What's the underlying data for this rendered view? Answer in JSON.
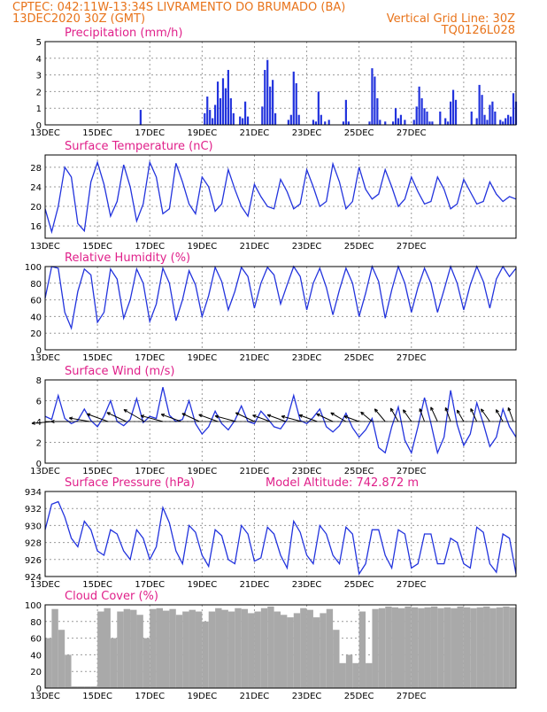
{
  "header": {
    "line1": "CPTEC:   042:11W-13:34S  LIVRAMENTO DO BRUMADO (BA)",
    "line2_left": "13DEC2020 30Z (GMT)",
    "line2_right": "Vertical Grid Line: 30Z",
    "line3_right": "TQ0126L028"
  },
  "colors": {
    "header": "#e8731a",
    "title": "#e0208a",
    "series": "#2233dd",
    "cloud": "#a9a9a9"
  },
  "date_labels": [
    "13DEC",
    "15DEC",
    "17DEC",
    "19DEC",
    "21DEC",
    "23DEC",
    "25DEC",
    "27DEC"
  ],
  "chart_data": [
    {
      "type": "bar",
      "title": "Precipitation (mm/h)",
      "ylim": [
        0,
        5
      ],
      "yticks": [
        "0",
        "1",
        "2",
        "3",
        "4",
        "5"
      ],
      "x_days": [
        3.65,
        6.1,
        6.2,
        6.3,
        6.4,
        6.5,
        6.6,
        6.7,
        6.8,
        6.9,
        7.0,
        7.1,
        7.2,
        7.45,
        7.55,
        7.65,
        7.75,
        8.3,
        8.4,
        8.5,
        8.6,
        8.7,
        8.8,
        9.3,
        9.4,
        9.5,
        9.6,
        9.7,
        10.25,
        10.35,
        10.45,
        10.55,
        10.7,
        10.85,
        11.4,
        11.5,
        11.6,
        12.4,
        12.5,
        12.6,
        12.7,
        12.8,
        13.0,
        13.3,
        13.4,
        13.5,
        13.6,
        13.75,
        14.1,
        14.2,
        14.3,
        14.4,
        14.5,
        14.6,
        14.7,
        14.8,
        15.1,
        15.3,
        15.4,
        15.5,
        15.6,
        15.7,
        16.3,
        16.5,
        16.6,
        16.7,
        16.8,
        16.9,
        17.0,
        17.1,
        17.2,
        17.4,
        17.5,
        17.6,
        17.7,
        17.8,
        17.9,
        18.0
      ],
      "values": [
        0.9,
        0.7,
        1.7,
        0.9,
        0.4,
        1.2,
        2.6,
        1.6,
        2.8,
        2.2,
        3.3,
        1.6,
        0.7,
        0.5,
        0.4,
        1.4,
        0.5,
        1.1,
        3.3,
        3.9,
        2.3,
        2.7,
        0.7,
        0.3,
        0.6,
        3.2,
        2.5,
        0.6,
        0.3,
        0.2,
        2.0,
        0.6,
        0.2,
        0.3,
        0.2,
        1.5,
        0.2,
        0.2,
        3.4,
        2.9,
        1.6,
        0.3,
        0.2,
        0.2,
        1.0,
        0.4,
        0.6,
        0.3,
        0.3,
        1.1,
        2.3,
        1.6,
        1.0,
        0.8,
        0.2,
        0.2,
        0.8,
        0.4,
        0.2,
        1.4,
        2.1,
        1.5,
        0.8,
        0.4,
        2.4,
        1.8,
        0.6,
        0.3,
        1.2,
        1.4,
        0.8,
        0.3,
        0.2,
        0.4,
        0.6,
        0.5,
        1.9,
        1.4
      ]
    },
    {
      "type": "line",
      "title": "Surface Temperature (nC)",
      "ylim": [
        13.5,
        30.5
      ],
      "yticks": [
        "16",
        "20",
        "24",
        "28"
      ],
      "x_days": [
        0,
        0.25,
        0.5,
        0.75,
        1,
        1.25,
        1.5,
        1.75,
        2,
        2.25,
        2.5,
        2.75,
        3,
        3.25,
        3.5,
        3.75,
        4,
        4.25,
        4.5,
        4.75,
        5,
        5.25,
        5.5,
        5.75,
        6,
        6.25,
        6.5,
        6.75,
        7,
        7.25,
        7.5,
        7.75,
        8,
        8.25,
        8.5,
        8.75,
        9,
        9.25,
        9.5,
        9.75,
        10,
        10.25,
        10.5,
        10.75,
        11,
        11.25,
        11.5,
        11.75,
        12,
        12.25,
        12.5,
        12.75,
        13,
        13.25,
        13.5,
        13.75,
        14,
        14.25,
        14.5,
        14.75,
        15,
        15.25,
        15.5,
        15.75,
        16,
        16.25,
        16.5,
        16.75,
        17,
        17.25,
        17.5,
        17.75,
        18
      ],
      "values": [
        19.5,
        14.8,
        20,
        28,
        26,
        16.5,
        15,
        25,
        29,
        24.5,
        18,
        21,
        28.5,
        24,
        17,
        20.5,
        29,
        26,
        18.5,
        19.5,
        28.8,
        25,
        20.5,
        18.5,
        26,
        24,
        19,
        20.5,
        27.5,
        23.5,
        20,
        18,
        24.5,
        22,
        20,
        19.5,
        25.5,
        23,
        19.5,
        20.5,
        27.5,
        24,
        20,
        21,
        28.7,
        25,
        19.5,
        21,
        28,
        23.5,
        21.5,
        22.5,
        27.5,
        24,
        20,
        21.5,
        26,
        23,
        20.5,
        21,
        26,
        23.5,
        19.5,
        20.5,
        25.5,
        23,
        20.5,
        21,
        25,
        22.5,
        21,
        22,
        21.5
      ]
    },
    {
      "type": "line",
      "title": "Relative Humidity (%)",
      "ylim": [
        0,
        100
      ],
      "yticks": [
        "0",
        "20",
        "40",
        "60",
        "80",
        "100"
      ],
      "x_days": [
        0,
        0.25,
        0.5,
        0.75,
        1,
        1.25,
        1.5,
        1.75,
        2,
        2.25,
        2.5,
        2.75,
        3,
        3.25,
        3.5,
        3.75,
        4,
        4.25,
        4.5,
        4.75,
        5,
        5.25,
        5.5,
        5.75,
        6,
        6.25,
        6.5,
        6.75,
        7,
        7.25,
        7.5,
        7.75,
        8,
        8.25,
        8.5,
        8.75,
        9,
        9.25,
        9.5,
        9.75,
        10,
        10.25,
        10.5,
        10.75,
        11,
        11.25,
        11.5,
        11.75,
        12,
        12.25,
        12.5,
        12.75,
        13,
        13.25,
        13.5,
        13.75,
        14,
        14.25,
        14.5,
        14.75,
        15,
        15.25,
        15.5,
        15.75,
        16,
        16.25,
        16.5,
        16.75,
        17,
        17.25,
        17.5,
        17.75,
        18
      ],
      "values": [
        62,
        100,
        98,
        45,
        26,
        70,
        97,
        90,
        33,
        45,
        97,
        85,
        38,
        60,
        97,
        80,
        34,
        55,
        98,
        80,
        35,
        60,
        95,
        78,
        40,
        65,
        99,
        82,
        48,
        70,
        99,
        88,
        50,
        80,
        99,
        90,
        55,
        78,
        100,
        88,
        48,
        80,
        98,
        75,
        42,
        72,
        98,
        80,
        40,
        68,
        100,
        82,
        38,
        72,
        100,
        80,
        45,
        75,
        98,
        80,
        45,
        72,
        100,
        80,
        48,
        78,
        100,
        82,
        50,
        85,
        100,
        88,
        98
      ]
    },
    {
      "type": "line",
      "title": "Surface Wind (m/s)",
      "ylim": [
        0,
        8
      ],
      "yticks": [
        "0",
        "2",
        "4",
        "6",
        "8"
      ],
      "x_days": [
        0,
        0.25,
        0.5,
        0.75,
        1,
        1.25,
        1.5,
        1.75,
        2,
        2.25,
        2.5,
        2.75,
        3,
        3.25,
        3.5,
        3.75,
        4,
        4.25,
        4.5,
        4.75,
        5,
        5.25,
        5.5,
        5.75,
        6,
        6.25,
        6.5,
        6.75,
        7,
        7.25,
        7.5,
        7.75,
        8,
        8.25,
        8.5,
        8.75,
        9,
        9.25,
        9.5,
        9.75,
        10,
        10.25,
        10.5,
        10.75,
        11,
        11.25,
        11.5,
        11.75,
        12,
        12.25,
        12.5,
        12.75,
        13,
        13.25,
        13.5,
        13.75,
        14,
        14.25,
        14.5,
        14.75,
        15,
        15.25,
        15.5,
        15.75,
        16,
        16.25,
        16.5,
        16.75,
        17,
        17.25,
        17.5,
        17.75,
        18
      ],
      "values": [
        4.5,
        4.2,
        6.5,
        4.3,
        3.8,
        4.1,
        5.2,
        4.1,
        3.5,
        4.5,
        6.0,
        4.0,
        3.6,
        4.2,
        6.2,
        3.9,
        4.5,
        4.3,
        7.3,
        4.6,
        4.0,
        4.2,
        6.0,
        3.8,
        2.8,
        3.5,
        5.0,
        3.8,
        3.2,
        4.1,
        5.5,
        4.0,
        3.8,
        5.0,
        4.3,
        3.5,
        3.3,
        4.2,
        6.5,
        4.1,
        3.8,
        4.4,
        5.2,
        3.5,
        3.0,
        3.6,
        4.8,
        3.4,
        2.5,
        3.2,
        4.3,
        1.5,
        1.0,
        3.5,
        5.4,
        2.2,
        1.0,
        3.5,
        6.3,
        3.8,
        1.0,
        2.5,
        7.0,
        3.7,
        1.7,
        2.8,
        5.8,
        3.8,
        1.6,
        2.5,
        5.2,
        3.5,
        2.5
      ],
      "arrows_x_days": [
        0.3,
        1.0,
        1.7,
        2.4,
        3.1,
        3.8,
        4.5,
        5.2,
        5.9,
        6.6,
        7.3,
        8.0,
        8.6,
        9.2,
        9.8,
        10.4,
        11.0,
        11.5,
        12.0,
        12.5,
        13.0,
        13.5,
        14.0,
        14.5,
        15.0,
        15.5,
        16.0,
        16.5,
        17.0,
        17.5,
        17.9
      ],
      "arrows_dir_deg": [
        175,
        180,
        190,
        200,
        205,
        210,
        195,
        200,
        205,
        200,
        195,
        205,
        200,
        200,
        195,
        200,
        205,
        210,
        200,
        220,
        230,
        240,
        235,
        250,
        245,
        250,
        240,
        245,
        235,
        240,
        250
      ],
      "arrows_speed": [
        4.0,
        3.8,
        3.9,
        4.2,
        4.0,
        4.5,
        4.3,
        4.0,
        3.6,
        3.8,
        4.1,
        3.9,
        3.5,
        3.7,
        3.9,
        3.6,
        3.4,
        3.3,
        3.0,
        2.8,
        3.1,
        2.9,
        2.7,
        2.6,
        3.0,
        2.8,
        2.5,
        2.7,
        2.9,
        2.6,
        2.8
      ]
    },
    {
      "type": "line",
      "title": "Surface Pressure (hPa)",
      "annotation": "Model Altitude: 742.872  m",
      "ylim": [
        924,
        934
      ],
      "yticks": [
        "924",
        "926",
        "928",
        "930",
        "932",
        "934"
      ],
      "x_days": [
        0,
        0.25,
        0.5,
        0.75,
        1,
        1.25,
        1.5,
        1.75,
        2,
        2.25,
        2.5,
        2.75,
        3,
        3.25,
        3.5,
        3.75,
        4,
        4.25,
        4.5,
        4.75,
        5,
        5.25,
        5.5,
        5.75,
        6,
        6.25,
        6.5,
        6.75,
        7,
        7.25,
        7.5,
        7.75,
        8,
        8.25,
        8.5,
        8.75,
        9,
        9.25,
        9.5,
        9.75,
        10,
        10.25,
        10.5,
        10.75,
        11,
        11.25,
        11.5,
        11.75,
        12,
        12.25,
        12.5,
        12.75,
        13,
        13.25,
        13.5,
        13.75,
        14,
        14.25,
        14.5,
        14.75,
        15,
        15.25,
        15.5,
        15.75,
        16,
        16.25,
        16.5,
        16.75,
        17,
        17.25,
        17.5,
        17.75,
        18
      ],
      "values": [
        929.5,
        932.5,
        932.8,
        931,
        928.5,
        927.5,
        930.5,
        929.5,
        927,
        926.5,
        929.5,
        929,
        927,
        926,
        929.5,
        928.5,
        926,
        927.5,
        932.1,
        930.3,
        927.0,
        925.5,
        930.0,
        929.2,
        926.5,
        925.2,
        929.5,
        928.8,
        926.0,
        925.5,
        930.0,
        929.0,
        925.8,
        926.2,
        929.8,
        929.0,
        926.5,
        925.0,
        930.5,
        929.2,
        926.5,
        925.5,
        930.0,
        929.0,
        926.5,
        925.5,
        929.8,
        929.0,
        924.3,
        925.5,
        929.5,
        929.5,
        926.5,
        925.0,
        929.5,
        929.0,
        925.0,
        925.5,
        929.0,
        929.0,
        925.5,
        925.5,
        928.5,
        928.0,
        925.5,
        925.0,
        929.8,
        929.2,
        925.5,
        924.5,
        929.0,
        928.5,
        924.3
      ]
    },
    {
      "type": "bar",
      "title": "Cloud Cover (%)",
      "ylim": [
        0,
        100
      ],
      "yticks": [
        "0",
        "20",
        "40",
        "60",
        "80",
        "100"
      ],
      "x_days": [
        0,
        0.25,
        0.5,
        0.75,
        1,
        1.25,
        1.5,
        1.75,
        2,
        2.25,
        2.5,
        2.75,
        3,
        3.25,
        3.5,
        3.75,
        4,
        4.25,
        4.5,
        4.75,
        5,
        5.25,
        5.5,
        5.75,
        6,
        6.25,
        6.5,
        6.75,
        7,
        7.25,
        7.5,
        7.75,
        8,
        8.25,
        8.5,
        8.75,
        9,
        9.25,
        9.5,
        9.75,
        10,
        10.25,
        10.5,
        10.75,
        11,
        11.25,
        11.5,
        11.75,
        12,
        12.25,
        12.5,
        12.75,
        13,
        13.25,
        13.5,
        13.75,
        14,
        14.25,
        14.5,
        14.75,
        15,
        15.25,
        15.5,
        15.75,
        16,
        16.25,
        16.5,
        16.75,
        17,
        17.25,
        17.5,
        17.75
      ],
      "values": [
        60,
        95,
        70,
        40,
        2,
        2,
        2,
        2,
        92,
        96,
        60,
        92,
        95,
        94,
        88,
        60,
        95,
        96,
        93,
        95,
        88,
        92,
        94,
        92,
        80,
        92,
        96,
        94,
        92,
        96,
        95,
        90,
        92,
        96,
        98,
        92,
        88,
        85,
        90,
        96,
        94,
        85,
        90,
        95,
        70,
        30,
        40,
        30,
        92,
        30,
        95,
        96,
        98,
        97,
        96,
        98,
        97,
        96,
        97,
        98,
        96,
        97,
        96,
        98,
        97,
        96,
        97,
        98,
        96,
        97,
        98,
        97
      ]
    }
  ]
}
